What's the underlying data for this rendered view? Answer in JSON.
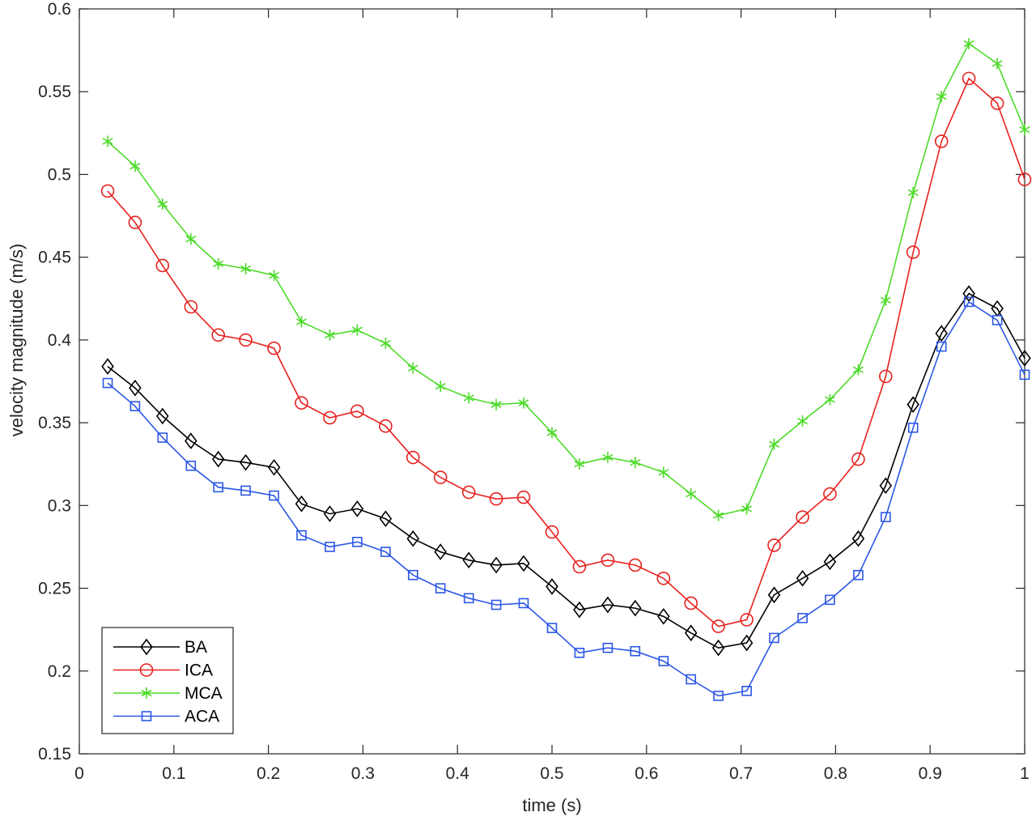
{
  "chart_data": {
    "type": "line",
    "title": "",
    "xlabel": "time (s)",
    "ylabel": "velocity magnitude (m/s)",
    "xlim": [
      0,
      1
    ],
    "ylim": [
      0.15,
      0.6
    ],
    "x_ticks": [
      0,
      0.1,
      0.2,
      0.3,
      0.4,
      0.5,
      0.6,
      0.7,
      0.8,
      0.9,
      1
    ],
    "x_tick_labels": [
      "0",
      "0.1",
      "0.2",
      "0.3",
      "0.4",
      "0.5",
      "0.6",
      "0.7",
      "0.8",
      "0.9",
      "1"
    ],
    "y_ticks": [
      0.15,
      0.2,
      0.25,
      0.3,
      0.35,
      0.4,
      0.45,
      0.5,
      0.55,
      0.6
    ],
    "y_tick_labels": [
      "0.15",
      "0.2",
      "0.25",
      "0.3",
      "0.35",
      "0.4",
      "0.45",
      "0.5",
      "0.55",
      "0.6"
    ],
    "grid": false,
    "legend_position": "bottom-left",
    "x": [
      0.03,
      0.059,
      0.088,
      0.118,
      0.147,
      0.176,
      0.206,
      0.235,
      0.265,
      0.294,
      0.324,
      0.353,
      0.382,
      0.412,
      0.441,
      0.47,
      0.5,
      0.529,
      0.559,
      0.588,
      0.618,
      0.647,
      0.676,
      0.706,
      0.735,
      0.765,
      0.794,
      0.824,
      0.853,
      0.882,
      0.912,
      0.941,
      0.971,
      1.0
    ],
    "series": [
      {
        "name": "BA",
        "color": "#000000",
        "marker": "diamond",
        "values": [
          0.384,
          0.371,
          0.354,
          0.339,
          0.328,
          0.326,
          0.323,
          0.301,
          0.295,
          0.298,
          0.292,
          0.28,
          0.272,
          0.267,
          0.264,
          0.265,
          0.251,
          0.237,
          0.24,
          0.238,
          0.233,
          0.223,
          0.214,
          0.217,
          0.246,
          0.256,
          0.266,
          0.28,
          0.312,
          0.361,
          0.404,
          0.428,
          0.419,
          0.389
        ]
      },
      {
        "name": "ICA",
        "color": "#e8211e",
        "marker": "circle",
        "values": [
          0.49,
          0.471,
          0.445,
          0.42,
          0.403,
          0.4,
          0.395,
          0.362,
          0.353,
          0.357,
          0.348,
          0.329,
          0.317,
          0.308,
          0.304,
          0.305,
          0.284,
          0.263,
          0.267,
          0.264,
          0.256,
          0.241,
          0.227,
          0.231,
          0.276,
          0.293,
          0.307,
          0.328,
          0.378,
          0.453,
          0.52,
          0.558,
          0.543,
          0.497
        ]
      },
      {
        "name": "MCA",
        "color": "#4cdb28",
        "marker": "asterisk",
        "values": [
          0.52,
          0.505,
          0.482,
          0.461,
          0.446,
          0.443,
          0.439,
          0.411,
          0.403,
          0.406,
          0.398,
          0.383,
          0.372,
          0.365,
          0.361,
          0.362,
          0.344,
          0.325,
          0.329,
          0.326,
          0.32,
          0.307,
          0.294,
          0.298,
          0.337,
          0.351,
          0.364,
          0.382,
          0.424,
          0.489,
          0.547,
          0.579,
          0.567,
          0.527
        ]
      },
      {
        "name": "ACA",
        "color": "#2b57e6",
        "marker": "square",
        "values": [
          0.374,
          0.36,
          0.341,
          0.324,
          0.311,
          0.309,
          0.306,
          0.282,
          0.275,
          0.278,
          0.272,
          0.258,
          0.25,
          0.244,
          0.24,
          0.241,
          0.226,
          0.211,
          0.214,
          0.212,
          0.206,
          0.195,
          0.185,
          0.188,
          0.22,
          0.232,
          0.243,
          0.258,
          0.293,
          0.347,
          0.396,
          0.423,
          0.412,
          0.379
        ]
      }
    ]
  }
}
